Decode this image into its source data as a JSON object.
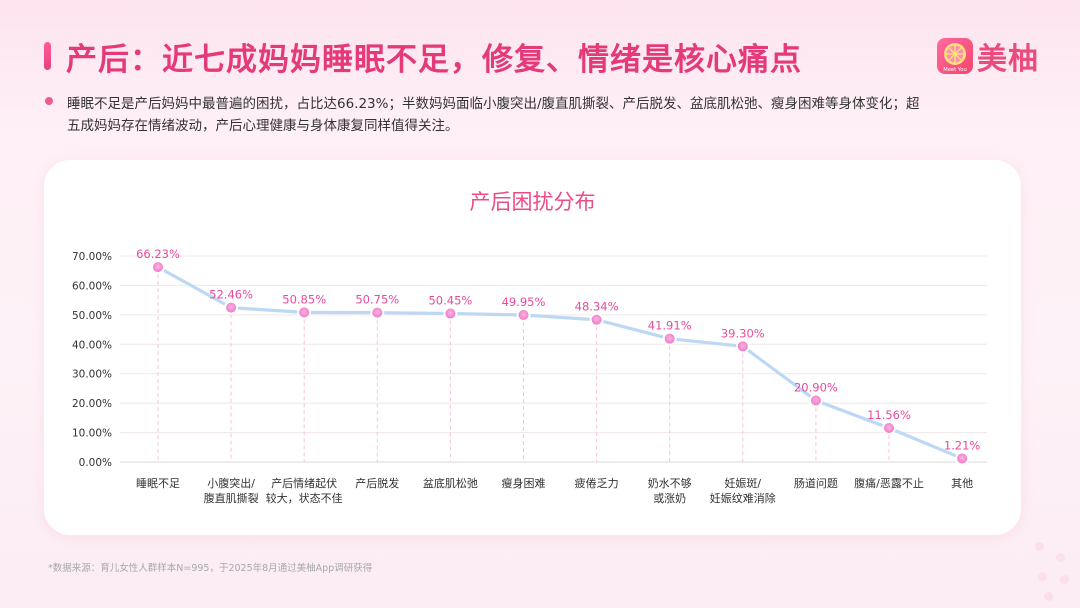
{
  "header": {
    "title": "产后：近七成妈妈睡眠不足，修复、情绪是核心痛点"
  },
  "logo": {
    "badge_text": "Meet You",
    "name": "美柚",
    "icon": "grapefruit-icon"
  },
  "summary": {
    "text": "睡眠不足是产后妈妈中最普遍的困扰，占比达66.23%；半数妈妈面临小腹突出/腹直肌撕裂、产后脱发、盆底肌松弛、瘦身困难等身体变化；超五成妈妈存在情绪波动，产后心理健康与身体康复同样值得关注。"
  },
  "chart_data": {
    "type": "line",
    "title": "产后困扰分布",
    "categories": [
      [
        "睡眠不足"
      ],
      [
        "小腹突出/",
        "腹直肌撕裂"
      ],
      [
        "产后情绪起伏",
        "较大，状态不佳"
      ],
      [
        "产后脱发"
      ],
      [
        "盆底肌松弛"
      ],
      [
        "瘦身困难"
      ],
      [
        "疲倦乏力"
      ],
      [
        "奶水不够",
        "或涨奶"
      ],
      [
        "妊娠斑/",
        "妊娠纹难消除"
      ],
      [
        "肠道问题"
      ],
      [
        "腹痛/恶露不止"
      ],
      [
        "其他"
      ]
    ],
    "values": [
      66.23,
      52.46,
      50.85,
      50.75,
      50.45,
      49.95,
      48.34,
      41.91,
      39.3,
      20.9,
      11.56,
      1.21
    ],
    "data_labels": [
      "66.23%",
      "52.46%",
      "50.85%",
      "50.75%",
      "50.45%",
      "49.95%",
      "48.34%",
      "41.91%",
      "39.30%",
      "20.90%",
      "11.56%",
      "1.21%"
    ],
    "ylim": [
      0,
      70
    ],
    "y_ticks": [
      "0.00%",
      "10.00%",
      "20.00%",
      "30.00%",
      "40.00%",
      "50.00%",
      "60.00%",
      "70.00%"
    ],
    "grid": true,
    "colors": {
      "line": "#bcd8f5",
      "marker": "#ee7bc7",
      "label": "#e94b9a",
      "dashed": "#f5c6d8",
      "grid": "#efe6ea"
    }
  },
  "footer": {
    "source": "*数据来源：育儿女性人群样本N=995，于2025年8月通过美柚App调研获得"
  }
}
